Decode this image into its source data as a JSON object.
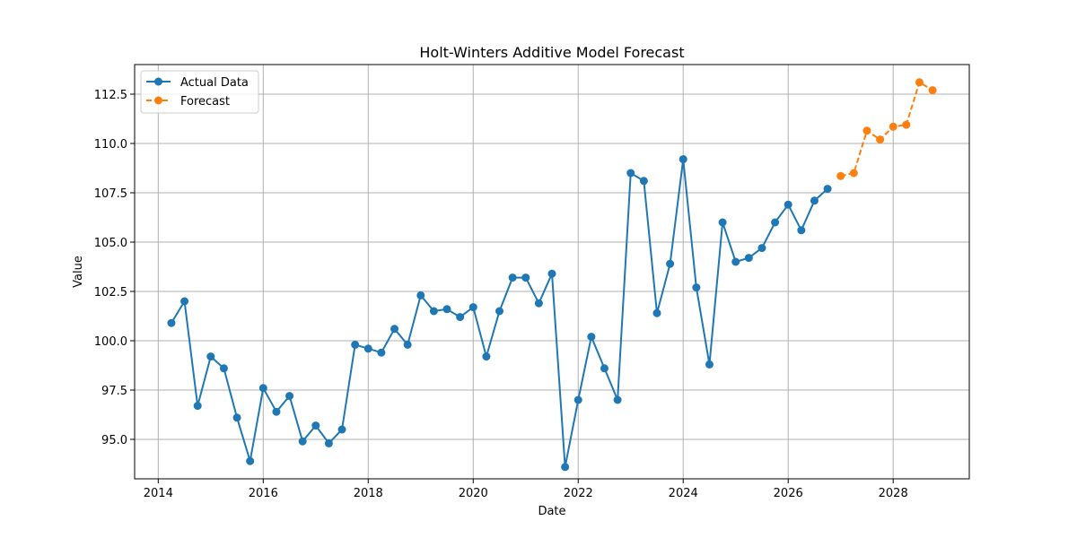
{
  "chart_data": {
    "type": "line",
    "title": "Holt-Winters Additive Model Forecast",
    "xlabel": "Date",
    "ylabel": "Value",
    "grid": true,
    "legend_position": "top-left",
    "xlim": [
      2013.55,
      2029.45
    ],
    "ylim": [
      93.0,
      114.0
    ],
    "x_ticks": [
      2014,
      2016,
      2018,
      2020,
      2022,
      2024,
      2026,
      2028
    ],
    "y_ticks": [
      95.0,
      97.5,
      100.0,
      102.5,
      105.0,
      107.5,
      110.0,
      112.5
    ],
    "x_tick_labels": [
      "2014",
      "2016",
      "2018",
      "2020",
      "2022",
      "2024",
      "2026",
      "2028"
    ],
    "y_tick_labels": [
      "95.0",
      "97.5",
      "100.0",
      "102.5",
      "105.0",
      "107.5",
      "110.0",
      "112.5"
    ],
    "series": [
      {
        "name": "Actual Data",
        "color": "#1f77b4",
        "style": "solid",
        "marker": "circle",
        "x": [
          2014.25,
          2014.5,
          2014.75,
          2015.0,
          2015.25,
          2015.5,
          2015.75,
          2016.0,
          2016.25,
          2016.5,
          2016.75,
          2017.0,
          2017.25,
          2017.5,
          2017.75,
          2018.0,
          2018.25,
          2018.5,
          2018.75,
          2019.0,
          2019.25,
          2019.5,
          2019.75,
          2020.0,
          2020.25,
          2020.5,
          2020.75,
          2021.0,
          2021.25,
          2021.5,
          2021.75,
          2022.0,
          2022.25,
          2022.5,
          2022.75,
          2023.0,
          2023.25,
          2023.5,
          2023.75,
          2024.0,
          2024.25,
          2024.5,
          2024.75,
          2025.0,
          2025.25,
          2025.5,
          2025.75,
          2026.0,
          2026.25,
          2026.5,
          2026.75
        ],
        "values": [
          100.9,
          102.0,
          96.7,
          99.2,
          98.6,
          96.1,
          93.9,
          97.6,
          96.4,
          97.2,
          94.9,
          95.7,
          94.8,
          95.5,
          99.8,
          99.6,
          99.4,
          100.6,
          99.8,
          102.3,
          101.5,
          101.6,
          101.2,
          101.7,
          99.2,
          101.5,
          103.2,
          103.2,
          101.9,
          103.4,
          93.6,
          97.0,
          100.2,
          98.6,
          97.0,
          108.5,
          108.1,
          101.4,
          103.9,
          109.2,
          102.7,
          98.8,
          106.0,
          104.0,
          104.2,
          104.7,
          106.0,
          106.9,
          105.6,
          107.1,
          107.7
        ]
      },
      {
        "name": "Forecast",
        "color": "#ff7f0e",
        "style": "dashed",
        "marker": "circle",
        "x": [
          2027.0,
          2027.25,
          2027.5,
          2027.75,
          2028.0,
          2028.25,
          2028.5,
          2028.75
        ],
        "values": [
          108.35,
          108.5,
          110.65,
          110.2,
          110.85,
          110.95,
          113.1,
          112.7
        ]
      }
    ]
  }
}
